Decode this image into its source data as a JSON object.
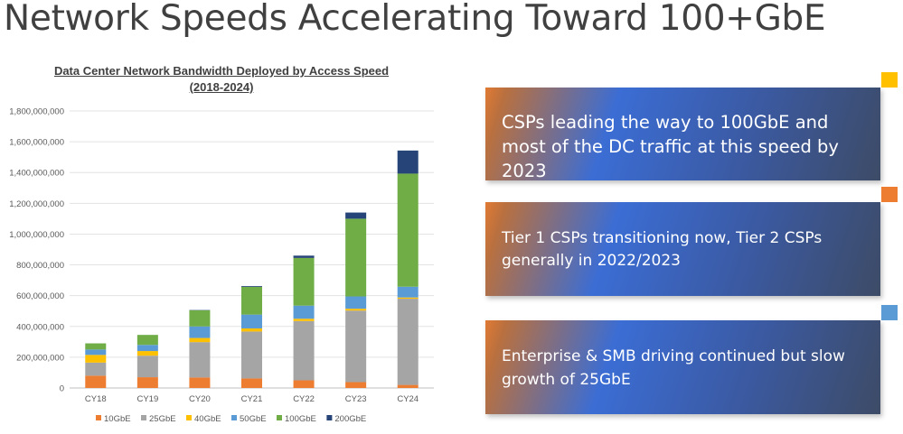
{
  "slide": {
    "title": "Network Speeds Accelerating Toward 100+GbE"
  },
  "chart_data": {
    "type": "bar",
    "stacked": true,
    "title": "Data Center Network Bandwidth Deployed by Access Speed (2018-2024)",
    "xlabel": "",
    "ylabel": "",
    "categories": [
      "CY18",
      "CY19",
      "CY20",
      "CY21",
      "CY22",
      "CY23",
      "CY24"
    ],
    "ylim": [
      0,
      1800000000
    ],
    "yticks": [
      0,
      200000000,
      400000000,
      600000000,
      800000000,
      1000000000,
      1200000000,
      1400000000,
      1600000000,
      1800000000
    ],
    "ytick_labels": [
      "0",
      "200,000,000",
      "400,000,000",
      "600,000,000",
      "800,000,000",
      "1,000,000,000",
      "1,200,000,000",
      "1,400,000,000",
      "1,600,000,000",
      "1,800,000,000"
    ],
    "grid": true,
    "legend": "bottom",
    "series": [
      {
        "name": "10GbE",
        "color": "#ed7d31",
        "values": [
          80000000,
          70000000,
          68000000,
          62000000,
          50000000,
          38000000,
          20000000
        ]
      },
      {
        "name": "25GbE",
        "color": "#a5a5a5",
        "values": [
          85000000,
          140000000,
          230000000,
          305000000,
          385000000,
          465000000,
          560000000
        ]
      },
      {
        "name": "40GbE",
        "color": "#ffc000",
        "values": [
          50000000,
          30000000,
          27000000,
          20000000,
          15000000,
          12000000,
          8000000
        ]
      },
      {
        "name": "50GbE",
        "color": "#5b9bd5",
        "values": [
          35000000,
          40000000,
          75000000,
          90000000,
          85000000,
          80000000,
          70000000
        ]
      },
      {
        "name": "100GbE",
        "color": "#70ad47",
        "values": [
          40000000,
          65000000,
          105000000,
          180000000,
          310000000,
          505000000,
          735000000
        ]
      },
      {
        "name": "200GbE",
        "color": "#264478",
        "values": [
          0,
          0,
          2000000,
          5000000,
          15000000,
          40000000,
          150000000
        ]
      }
    ]
  },
  "callouts": [
    {
      "text": "CSPs leading the way to 100GbE and most of the DC traffic at this speed by 2023",
      "marker_color": "#ffc000"
    },
    {
      "text": "Tier 1 CSPs transitioning now, Tier 2 CSPs generally in 2022/2023",
      "marker_color": "#ed7d31"
    },
    {
      "text": "Enterprise & SMB driving continued but slow growth of 25GbE",
      "marker_color": "#5b9bd5"
    }
  ]
}
